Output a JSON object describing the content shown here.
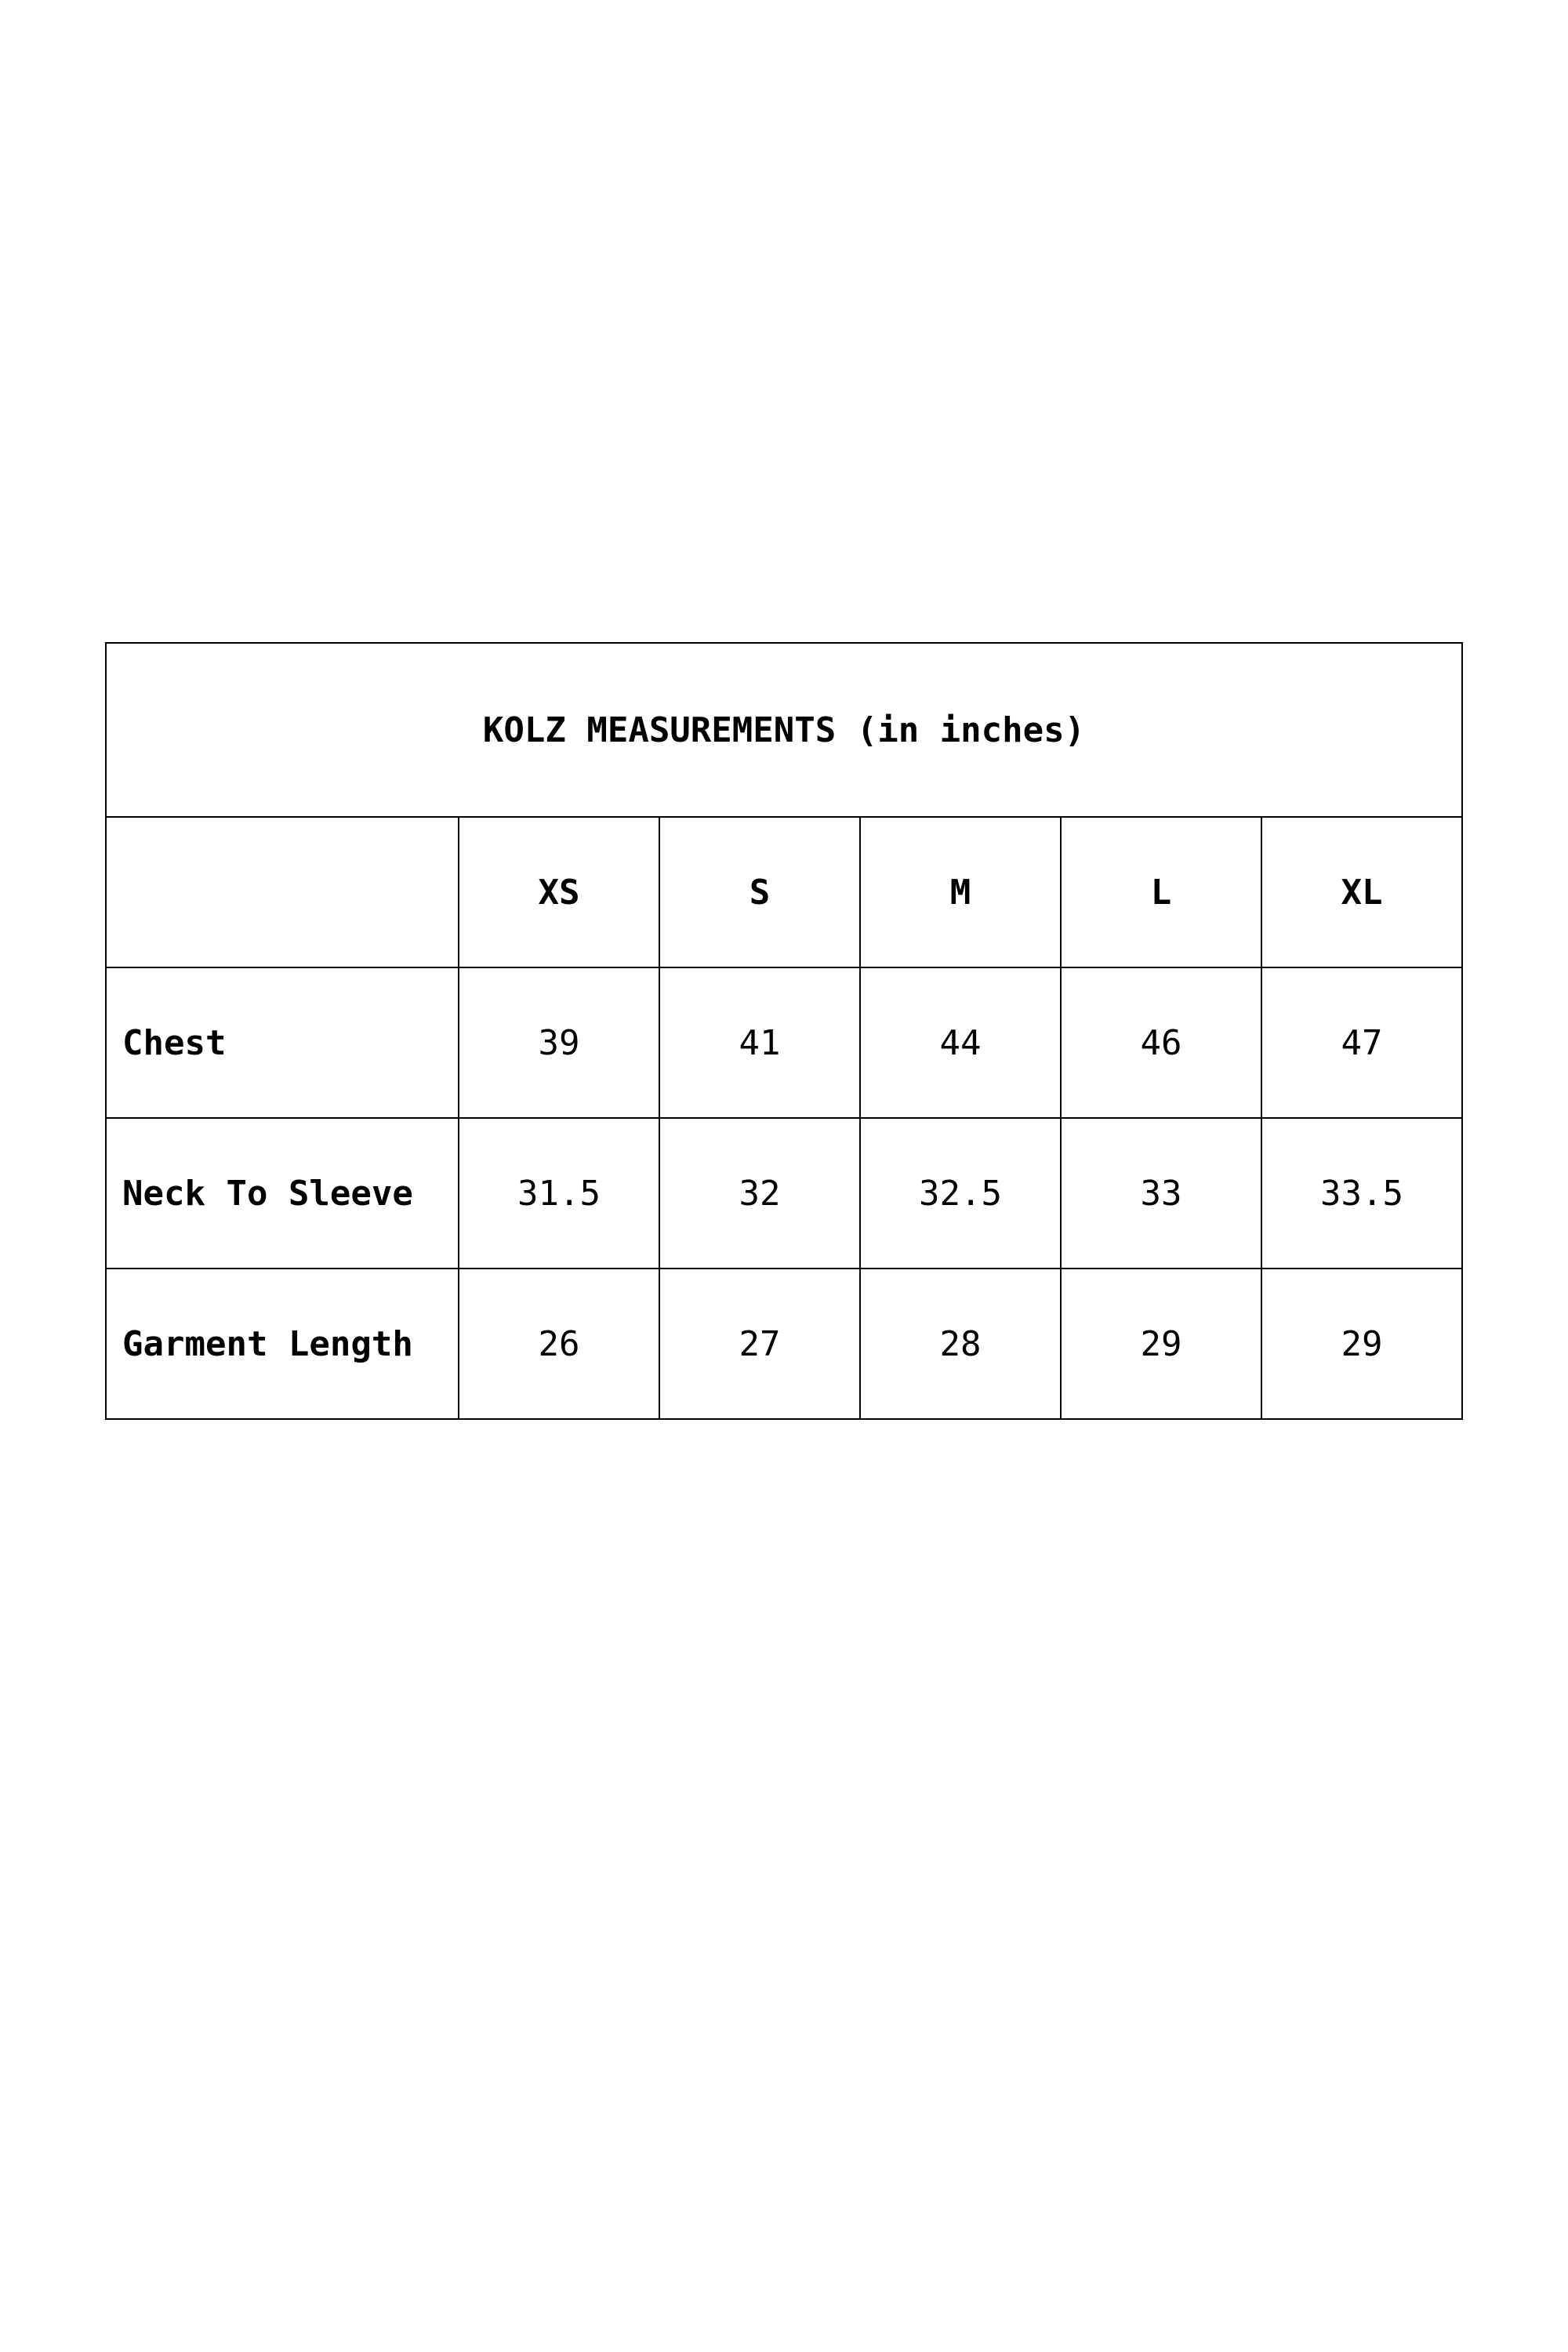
{
  "table": {
    "title": "KOLZ MEASUREMENTS (in inches)",
    "sizes": [
      "XS",
      "S",
      "M",
      "L",
      "XL"
    ],
    "rows": [
      {
        "label": "Chest",
        "values": [
          "39",
          "41",
          "44",
          "46",
          "47"
        ]
      },
      {
        "label": "Neck To Sleeve",
        "values": [
          "31.5",
          "32",
          "32.5",
          "33",
          "33.5"
        ]
      },
      {
        "label": "Garment Length",
        "values": [
          "26",
          "27",
          "28",
          "29",
          "29"
        ]
      }
    ]
  }
}
